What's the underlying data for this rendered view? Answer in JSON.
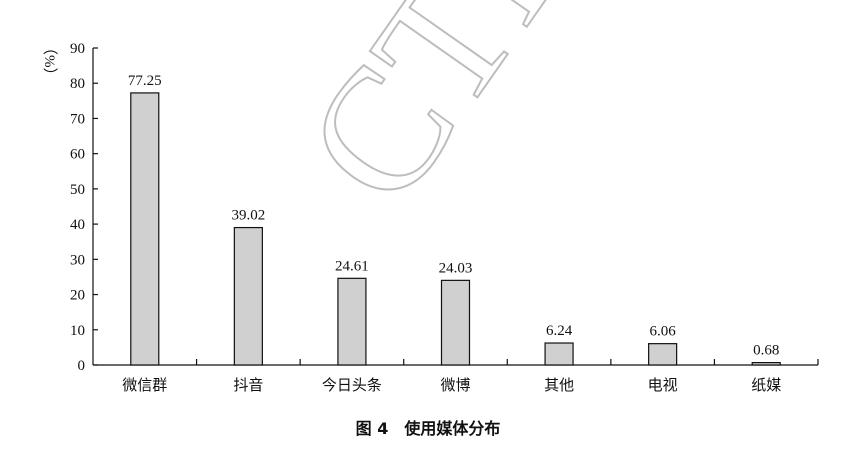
{
  "watermark": "CTP",
  "caption": "图 4　使用媒体分布",
  "chart_data": {
    "type": "bar",
    "title": "图 4　使用媒体分布",
    "ylabel": "（%）",
    "ylim": [
      0,
      90
    ],
    "yticks": [
      0,
      10,
      20,
      30,
      40,
      50,
      60,
      70,
      80,
      90
    ],
    "categories": [
      "微信群",
      "抖音",
      "今日头条",
      "微博",
      "其他",
      "电视",
      "纸媒"
    ],
    "values": [
      77.25,
      39.02,
      24.61,
      24.03,
      6.24,
      6.06,
      0.68
    ],
    "data_labels": [
      "77.25",
      "39.02",
      "24.61",
      "24.03",
      "6.24",
      "6.06",
      "0.68"
    ],
    "bar_color": "#d0d0d0",
    "grid": false,
    "legend": "none"
  }
}
